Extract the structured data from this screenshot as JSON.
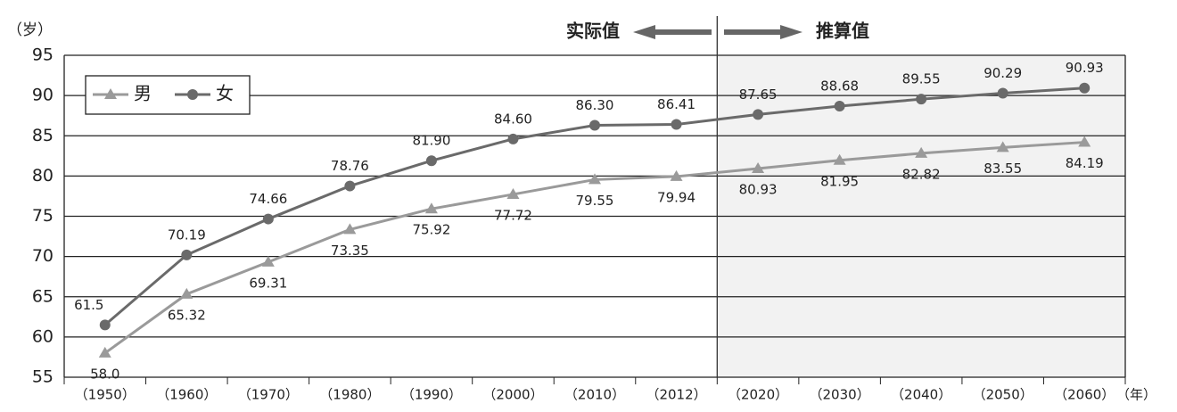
{
  "chart_data": {
    "type": "line",
    "y_unit": "（岁）",
    "x_unit": "（年）",
    "annotations": {
      "actual": "实际值",
      "projected": "推算值"
    },
    "categories": [
      "（1950）",
      "（1960）",
      "（1970）",
      "（1980）",
      "（1990）",
      "（2000）",
      "（2010）",
      "（2012）",
      "（2020）",
      "（2030）",
      "（2040）",
      "（2050）",
      "（2060）"
    ],
    "series": [
      {
        "name": "男",
        "color": "#9a9a9a",
        "marker": "triangle",
        "values": [
          58.0,
          65.32,
          69.31,
          73.35,
          75.92,
          77.72,
          79.55,
          79.94,
          80.93,
          81.95,
          82.82,
          83.55,
          84.19
        ],
        "value_labels": [
          "58.0",
          "65.32",
          "69.31",
          "73.35",
          "75.92",
          "77.72",
          "79.55",
          "79.94",
          "80.93",
          "81.95",
          "82.82",
          "83.55",
          "84.19"
        ]
      },
      {
        "name": "女",
        "color": "#6a6a6a",
        "marker": "circle",
        "values": [
          61.5,
          70.19,
          74.66,
          78.76,
          81.9,
          84.6,
          86.3,
          86.41,
          87.65,
          88.68,
          89.55,
          90.29,
          90.93
        ],
        "value_labels": [
          "61.5",
          "70.19",
          "74.66",
          "78.76",
          "81.90",
          "84.60",
          "86.30",
          "86.41",
          "87.65",
          "88.68",
          "89.55",
          "90.29",
          "90.93"
        ]
      }
    ],
    "ylim": [
      55,
      95
    ],
    "yticks": [
      55,
      60,
      65,
      70,
      75,
      80,
      85,
      90,
      95
    ],
    "grid": true,
    "legend": "top-left"
  }
}
